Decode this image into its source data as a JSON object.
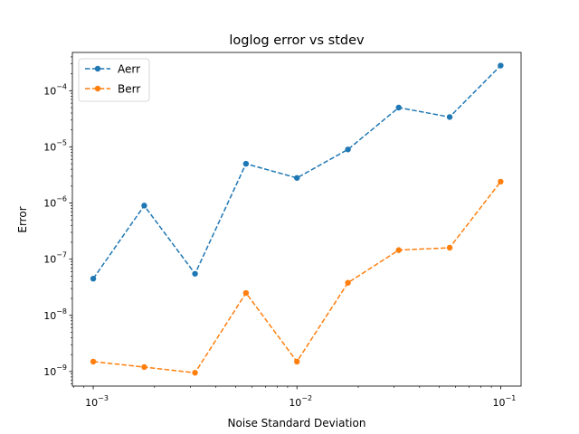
{
  "chart_data": {
    "type": "line",
    "title": "loglog error vs stdev",
    "xlabel": "Noise Standard Deviation",
    "ylabel": "Error",
    "xscale": "log",
    "yscale": "log",
    "xlim": [
      0.00079,
      0.126
    ],
    "ylim": [
      5.5e-10,
      0.00048
    ],
    "grid": false,
    "legend_position": "top-left",
    "x_tick_values": [
      0.001,
      0.01,
      0.1
    ],
    "x_tick_labels": [
      {
        "base": "10",
        "exp": "−3"
      },
      {
        "base": "10",
        "exp": "−2"
      },
      {
        "base": "10",
        "exp": "−1"
      }
    ],
    "y_tick_values": [
      1e-09,
      1e-08,
      1e-07,
      1e-06,
      1e-05,
      0.0001
    ],
    "y_tick_labels": [
      {
        "base": "10",
        "exp": "−9"
      },
      {
        "base": "10",
        "exp": "−8"
      },
      {
        "base": "10",
        "exp": "−7"
      },
      {
        "base": "10",
        "exp": "−6"
      },
      {
        "base": "10",
        "exp": "−5"
      },
      {
        "base": "10",
        "exp": "−4"
      }
    ],
    "x": [
      0.001,
      0.00178,
      0.00316,
      0.00562,
      0.01,
      0.0178,
      0.0316,
      0.0562,
      0.1
    ],
    "series": [
      {
        "name": "Aerr",
        "color": "#1f77b4",
        "values": [
          4.5e-08,
          9e-07,
          5.5e-08,
          5e-06,
          2.8e-06,
          9e-06,
          5e-05,
          3.4e-05,
          0.00028
        ]
      },
      {
        "name": "Berr",
        "color": "#ff7f0e",
        "values": [
          1.5e-09,
          1.2e-09,
          9.5e-10,
          2.5e-08,
          1.5e-09,
          3.8e-08,
          1.45e-07,
          1.6e-07,
          2.4e-06
        ]
      }
    ]
  }
}
